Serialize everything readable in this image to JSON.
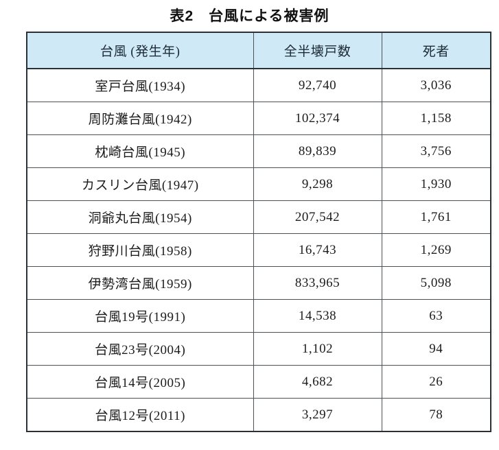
{
  "caption": "表2　台風による被害例",
  "table": {
    "headers": {
      "typhoon": "台風 (発生年)",
      "houses": "全半壊戸数",
      "deaths": "死者"
    },
    "rows": [
      {
        "typhoon": "室戸台風(1934)",
        "houses": "92,740",
        "deaths": "3,036"
      },
      {
        "typhoon": "周防灘台風(1942)",
        "houses": "102,374",
        "deaths": "1,158"
      },
      {
        "typhoon": "枕崎台風(1945)",
        "houses": "89,839",
        "deaths": "3,756"
      },
      {
        "typhoon": "カスリン台風(1947)",
        "houses": "9,298",
        "deaths": "1,930"
      },
      {
        "typhoon": "洞爺丸台風(1954)",
        "houses": "207,542",
        "deaths": "1,761"
      },
      {
        "typhoon": "狩野川台風(1958)",
        "houses": "16,743",
        "deaths": "1,269"
      },
      {
        "typhoon": "伊勢湾台風(1959)",
        "houses": "833,965",
        "deaths": "5,098"
      },
      {
        "typhoon": "台風19号(1991)",
        "houses": "14,538",
        "deaths": "63"
      },
      {
        "typhoon": "台風23号(2004)",
        "houses": "1,102",
        "deaths": "94"
      },
      {
        "typhoon": "台風14号(2005)",
        "houses": "4,682",
        "deaths": "26"
      },
      {
        "typhoon": "台風12号(2011)",
        "houses": "3,297",
        "deaths": "78"
      }
    ]
  },
  "colors": {
    "header_bg": "#cfe9f6",
    "border_outer": "#2b3036",
    "border_inner": "#4c5156",
    "header_text": "#1d2b36",
    "body_text": "#1c1c1c"
  }
}
